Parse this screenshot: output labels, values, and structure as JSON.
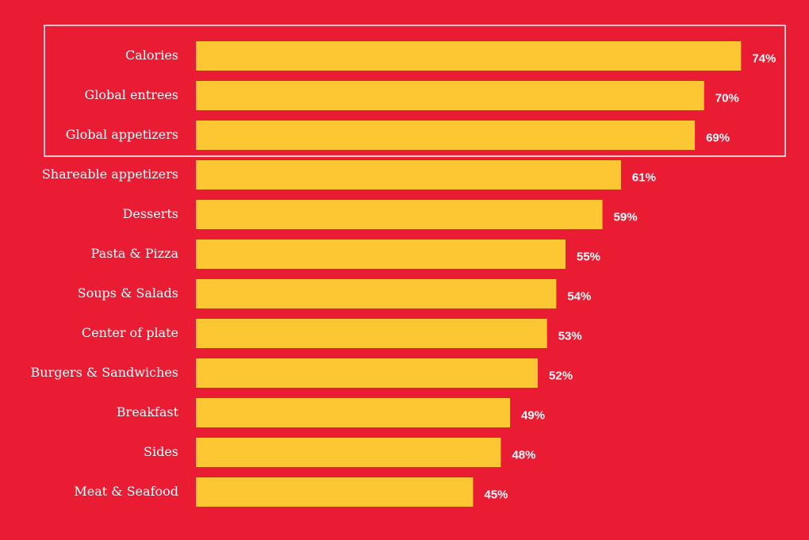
{
  "chart_data": {
    "type": "bar",
    "orientation": "horizontal",
    "categories": [
      "Calories",
      "Global entrees",
      "Global appetizers",
      "Shareable appetizers",
      "Desserts",
      "Pasta & Pizza",
      "Soups & Salads",
      "Center of plate",
      "Burgers & Sandwiches",
      "Breakfast",
      "Sides",
      "Meat & Seafood"
    ],
    "values": [
      74,
      70,
      69,
      61,
      59,
      55,
      54,
      53,
      52,
      49,
      48,
      45
    ],
    "value_labels": [
      "74%",
      "70%",
      "69%",
      "61%",
      "59%",
      "55%",
      "54%",
      "53%",
      "52%",
      "49%",
      "48%",
      "45%"
    ],
    "color": "#fdc633",
    "xlim": [
      15,
      75
    ]
  }
}
